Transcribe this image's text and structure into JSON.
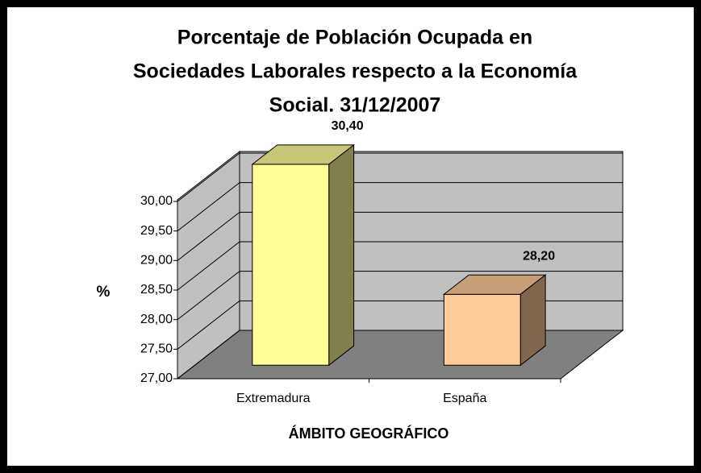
{
  "chart_data": {
    "type": "bar3d",
    "title": [
      "Porcentaje de  Población Ocupada en",
      "Sociedades Laborales respecto a la Economía",
      "Social. 31/12/2007"
    ],
    "x_label": "ÁMBITO GEOGRÁFICO",
    "y_label": "%",
    "categories": [
      "Extremadura",
      "España"
    ],
    "values": [
      30.4,
      28.2
    ],
    "value_labels": [
      "30,40",
      "28,20"
    ],
    "colors": [
      "#ffff99",
      "#ffcc99"
    ],
    "ylim": [
      27,
      30
    ],
    "yticks": [
      {
        "value": 27,
        "label": "27,00"
      },
      {
        "value": 27.5,
        "label": "27,50"
      },
      {
        "value": 28,
        "label": "28,00"
      },
      {
        "value": 28.5,
        "label": "28,50"
      },
      {
        "value": 29,
        "label": "29,00"
      },
      {
        "value": 29.5,
        "label": "29,50"
      },
      {
        "value": 30,
        "label": "30,00"
      }
    ],
    "grid": true
  }
}
